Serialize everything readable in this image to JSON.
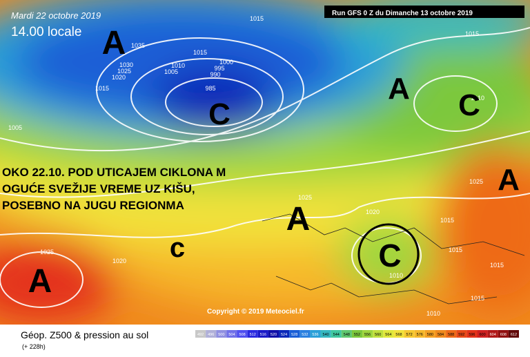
{
  "header": {
    "date": "Mardi 22 octobre 2019",
    "time": "14.00 locale",
    "run": "Run GFS 0 Z du Dimanche 13 octobre 2019"
  },
  "overlay": [
    "OKO 22.10. POD UTICAJEM CIKLONA M",
    "OGUĆE SVEŽIJE VREME UZ KIŠU,",
    "POSEBNO NA JUGU REGIONMA"
  ],
  "systems": [
    "A",
    "C",
    "A",
    "C",
    "A",
    "A",
    "c",
    "C",
    "A"
  ],
  "isobars": [
    "1015",
    "1035",
    "1030",
    "1025",
    "1020",
    "1015",
    "1015",
    "1010",
    "1005",
    "1000",
    "995",
    "990",
    "985",
    "1005",
    "1015",
    "1010",
    "1025",
    "1025",
    "1020",
    "1015",
    "1015",
    "1015",
    "1015",
    "1010",
    "1010",
    "1025",
    "1020"
  ],
  "copyright": "Copyright © 2019 Meteociel.fr",
  "footer": {
    "title": "Géop. Z500 & pression au sol",
    "lead": "(+ 228h)"
  },
  "scale": [
    492,
    496,
    500,
    504,
    508,
    512,
    516,
    520,
    524,
    528,
    532,
    536,
    540,
    544,
    548,
    552,
    556,
    560,
    564,
    568,
    572,
    576,
    580,
    584,
    588,
    592,
    596,
    600,
    604,
    608,
    612
  ]
}
